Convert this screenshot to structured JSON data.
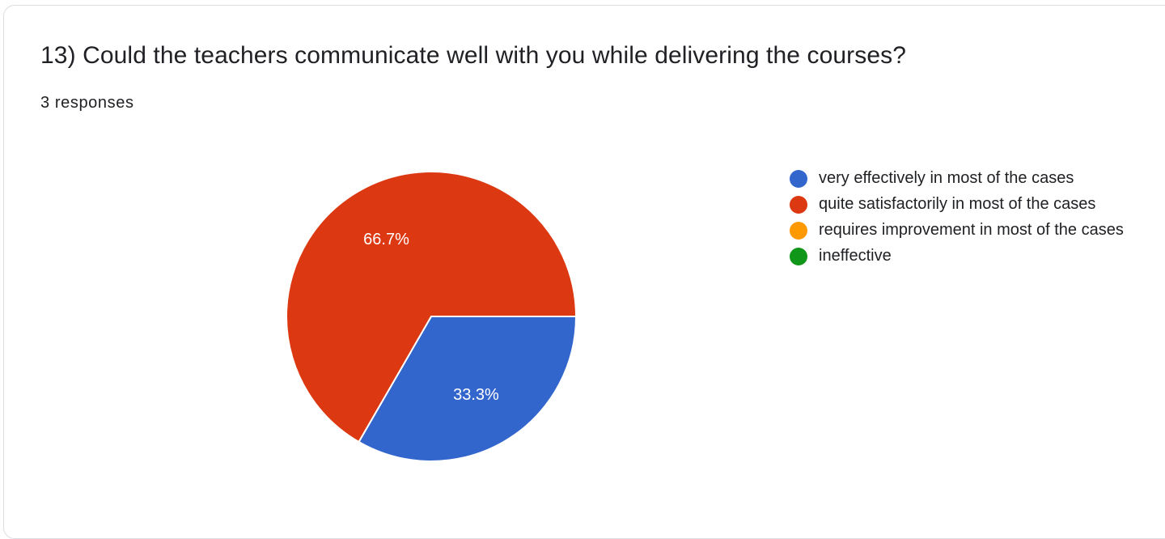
{
  "question": "13) Could the teachers communicate well with you while delivering the courses?",
  "responses": "3 responses",
  "chart_data": {
    "type": "pie",
    "title": "13) Could the teachers communicate well with you while delivering the courses?",
    "categories": [
      "very effectively in most of the cases",
      "quite satisfactorily in most of the cases",
      "requires improvement in most of the cases",
      "ineffective"
    ],
    "values": [
      1,
      2,
      0,
      0
    ],
    "percent_labels": [
      "33.3%",
      "66.7%",
      "",
      ""
    ],
    "colors": [
      "#3366cc",
      "#dc3912",
      "#ff9900",
      "#109618"
    ],
    "legend": "right"
  }
}
